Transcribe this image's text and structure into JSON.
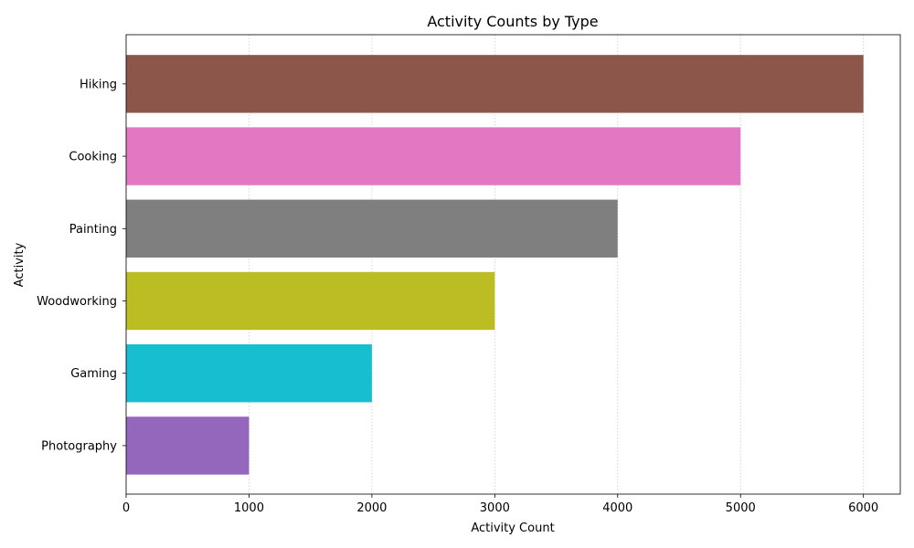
{
  "chart_data": {
    "type": "bar",
    "orientation": "horizontal",
    "title": "Activity Counts by Type",
    "xlabel": "Activity Count",
    "ylabel": "Activity",
    "categories": [
      "Hiking",
      "Cooking",
      "Painting",
      "Woodworking",
      "Gaming",
      "Photography"
    ],
    "values": [
      6000,
      5000,
      4000,
      3000,
      2000,
      1000
    ],
    "colors": [
      "#8c564b",
      "#e377c2",
      "#7f7f7f",
      "#bcbd22",
      "#17becf",
      "#9467bd"
    ],
    "xlim": [
      0,
      6300
    ],
    "xticks": [
      0,
      1000,
      2000,
      3000,
      4000,
      5000,
      6000
    ],
    "grid": "x-axis dotted",
    "legend": "none"
  }
}
